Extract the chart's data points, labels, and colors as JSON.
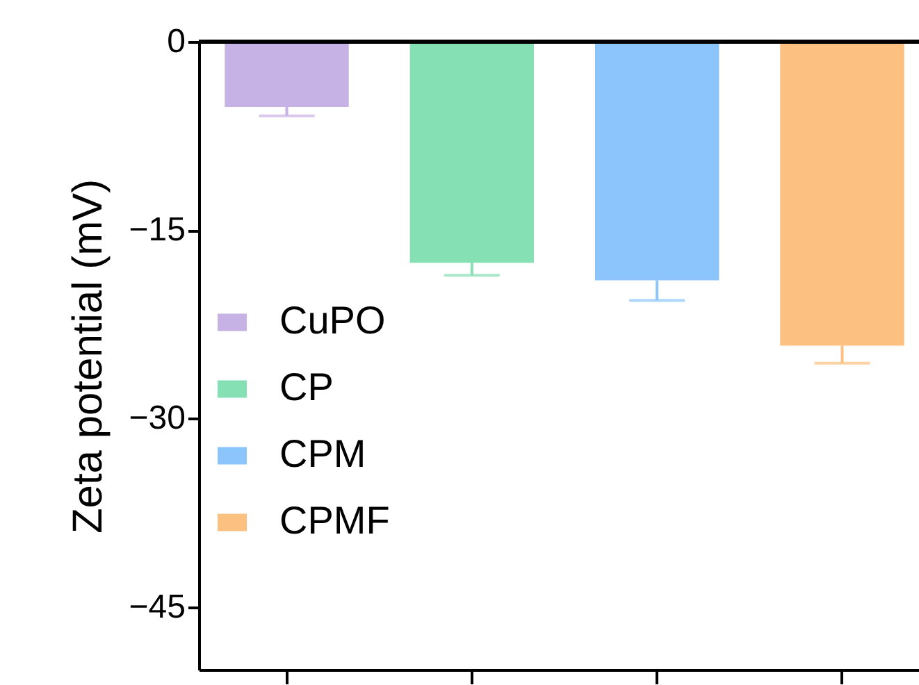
{
  "chart_data": {
    "type": "bar",
    "ylabel": "Zeta potential (mV)",
    "categories": [
      null,
      null,
      null,
      null
    ],
    "series": [
      {
        "name": "CuPO",
        "color": "#c7b2e6",
        "values": [
          -5.2,
          null,
          null,
          null
        ],
        "errors": [
          [
            -5.9,
            -5.2
          ],
          null,
          null,
          null
        ]
      },
      {
        "name": "CP",
        "color": "#85e0b4",
        "values": [
          null,
          -17.6,
          null,
          null
        ],
        "errors": [
          null,
          [
            -18.6,
            -17.6
          ],
          null,
          null
        ]
      },
      {
        "name": "CPM",
        "color": "#8cc4fc",
        "values": [
          null,
          null,
          -19.0,
          null
        ],
        "errors": [
          null,
          null,
          [
            -20.6,
            -19.0
          ],
          null
        ]
      },
      {
        "name": "CPMF",
        "color": "#fcc080",
        "values": [
          null,
          null,
          null,
          -24.2
        ],
        "errors": [
          null,
          null,
          null,
          [
            -25.6,
            -24.2
          ]
        ]
      }
    ],
    "ylim": [
      -50,
      0
    ],
    "yticks": [
      0,
      -15,
      -30,
      -45
    ],
    "ref_lines": [
      {
        "axis": "y",
        "value": 0
      }
    ],
    "tick_labels": "y",
    "legend": "left",
    "grid": false
  }
}
